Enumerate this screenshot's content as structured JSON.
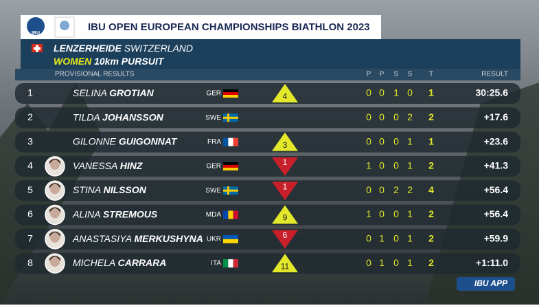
{
  "header": {
    "logo": "IBU",
    "title_prefix": "IBU",
    "title": "OPEN EUROPEAN CHAMPIONSHIPS BIATHLON 2023",
    "location": "LENZERHEIDE",
    "country": "SWITZERLAND",
    "gender": "WOMEN",
    "event": "10km  PURSUIT",
    "subtitle": "PROVISIONAL RESULTS"
  },
  "table": {
    "columns": [
      "P",
      "P",
      "S",
      "S",
      "T",
      "RESULT"
    ],
    "rows": [
      {
        "rank": "1",
        "first": "SELINA",
        "last": "GROTIAN",
        "nation": "GER",
        "move": {
          "direction": "up",
          "value": "4"
        },
        "shots": [
          "0",
          "0",
          "1",
          "0"
        ],
        "total": "1",
        "result": "30:25.6",
        "photo": false
      },
      {
        "rank": "2",
        "first": "TILDA",
        "last": "JOHANSSON",
        "nation": "SWE",
        "shots": [
          "0",
          "0",
          "0",
          "2"
        ],
        "total": "2",
        "result": "+17.6",
        "photo": false
      },
      {
        "rank": "3",
        "first": "GILONNE",
        "last": "GUIGONNAT",
        "nation": "FRA",
        "move": {
          "direction": "up",
          "value": "3"
        },
        "shots": [
          "0",
          "0",
          "0",
          "1"
        ],
        "total": "1",
        "result": "+23.6",
        "photo": false
      },
      {
        "rank": "4",
        "first": "VANESSA",
        "last": "HINZ",
        "nation": "GER",
        "move": {
          "direction": "down",
          "value": "1"
        },
        "shots": [
          "1",
          "0",
          "0",
          "1"
        ],
        "total": "2",
        "result": "+41.3",
        "photo": true
      },
      {
        "rank": "5",
        "first": "STINA",
        "last": "NILSSON",
        "nation": "SWE",
        "move": {
          "direction": "down",
          "value": "1"
        },
        "shots": [
          "0",
          "0",
          "2",
          "2"
        ],
        "total": "4",
        "result": "+56.4",
        "photo": true
      },
      {
        "rank": "6",
        "first": "ALINA",
        "last": "STREMOUS",
        "nation": "MDA",
        "move": {
          "direction": "up",
          "value": "9"
        },
        "shots": [
          "1",
          "0",
          "0",
          "1"
        ],
        "total": "2",
        "result": "+56.4",
        "photo": true
      },
      {
        "rank": "7",
        "first": "ANASTASIYA",
        "last": "MERKUSHYNA",
        "nation": "UKR",
        "move": {
          "direction": "down",
          "value": "6"
        },
        "shots": [
          "0",
          "1",
          "0",
          "1"
        ],
        "total": "2",
        "result": "+59.9",
        "photo": true
      },
      {
        "rank": "8",
        "first": "MICHELA",
        "last": "CARRARA",
        "nation": "ITA",
        "move": {
          "direction": "up",
          "value": "11"
        },
        "shots": [
          "0",
          "1",
          "0",
          "1"
        ],
        "total": "2",
        "result": "+1:11.0",
        "photo": true
      }
    ]
  },
  "footer": {
    "app": "IBU APP"
  }
}
